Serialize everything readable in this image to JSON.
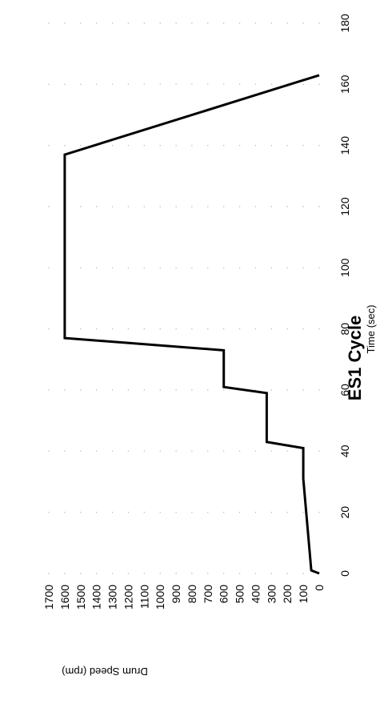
{
  "chart_data": {
    "type": "line",
    "title": "ES1 Cycle",
    "xlabel": "Time (sec)",
    "ylabel": "Drum Speed (rpm)",
    "xlim": [
      0,
      180
    ],
    "ylim": [
      0,
      1700
    ],
    "x_ticks": [
      0,
      20,
      40,
      60,
      80,
      100,
      120,
      140,
      160,
      180
    ],
    "y_ticks": [
      0,
      100,
      200,
      300,
      400,
      500,
      600,
      700,
      800,
      900,
      1000,
      1100,
      1200,
      1300,
      1400,
      1500,
      1600,
      1700
    ],
    "grid": "dotted",
    "orientation": "rotated 90 degrees counter-clockwise",
    "series": [
      {
        "x": [
          0,
          1,
          31,
          41,
          43,
          59,
          61,
          73,
          77,
          137,
          163
        ],
        "y": [
          0,
          50,
          100,
          100,
          330,
          330,
          600,
          600,
          1600,
          1600,
          0
        ]
      }
    ]
  }
}
